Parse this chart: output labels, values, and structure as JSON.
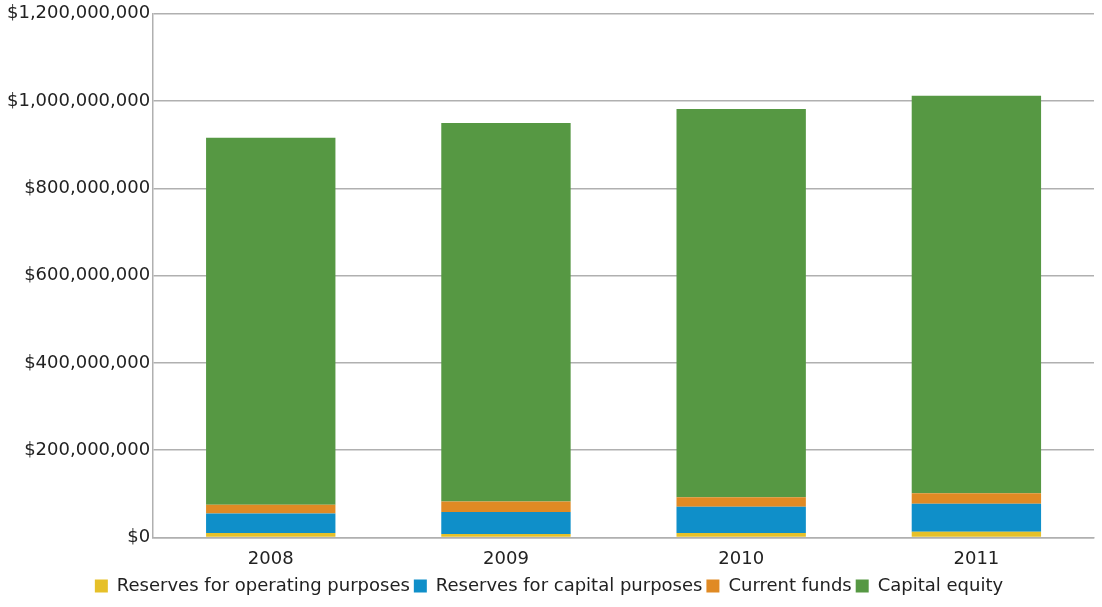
{
  "chart_data": {
    "type": "bar",
    "stacked": true,
    "categories": [
      "2008",
      "2009",
      "2010",
      "2011"
    ],
    "series": [
      {
        "name": "Reserves for operating purposes",
        "color": "#e6c029",
        "values": [
          10000000,
          8000000,
          10000000,
          13000000
        ]
      },
      {
        "name": "Reserves for capital purposes",
        "color": "#0f8fc9",
        "values": [
          45000000,
          50000000,
          60000000,
          64000000
        ]
      },
      {
        "name": "Current funds",
        "color": "#e08a24",
        "values": [
          20000000,
          24000000,
          22000000,
          24000000
        ]
      },
      {
        "name": "Capital equity",
        "color": "#569843",
        "values": [
          841000000,
          868000000,
          890000000,
          911000000
        ]
      }
    ],
    "ylim": [
      0,
      1200000000
    ],
    "yticks": [
      {
        "value": 0,
        "label": "$0"
      },
      {
        "value": 200000000,
        "label": "$200,000,000"
      },
      {
        "value": 400000000,
        "label": "$400,000,000"
      },
      {
        "value": 600000000,
        "label": "$600,000,000"
      },
      {
        "value": 800000000,
        "label": "$800,000,000"
      },
      {
        "value": 1000000000,
        "label": "$1,000,000,000"
      },
      {
        "value": 1200000000,
        "label": "$1,200,000,000"
      }
    ],
    "grid": "y",
    "legend": "bottom"
  }
}
